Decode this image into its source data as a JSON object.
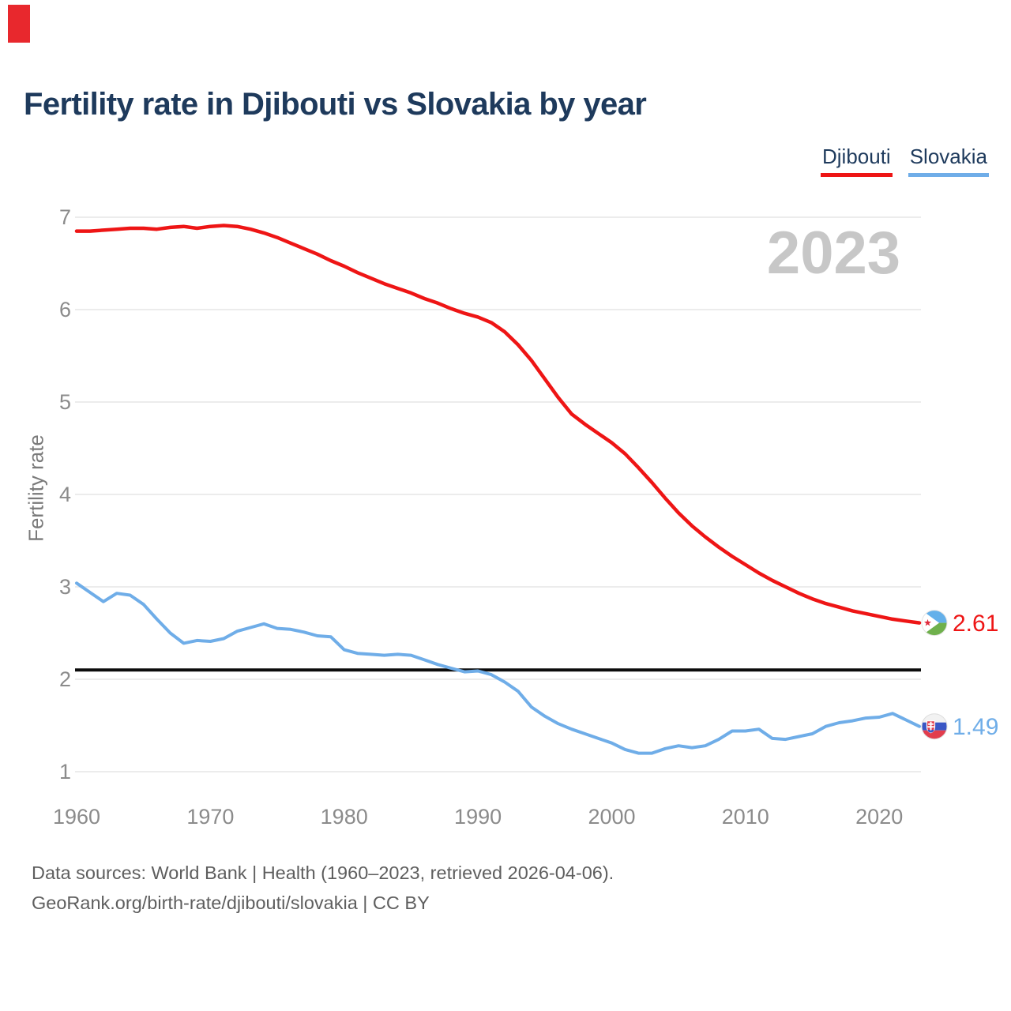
{
  "header": {
    "title": "Fertility rate in Djibouti vs Slovakia by year"
  },
  "watermark": "2023",
  "y_axis_title": "Fertility rate",
  "footer": {
    "line1": "Data sources: World Bank | Health (1960–2023, retrieved 2026-04-06).",
    "line2": "GeoRank.org/birth-rate/djibouti/slovakia | CC BY"
  },
  "colors": {
    "title": "#1e3a5c",
    "grid": "#ececec",
    "axis_text": "#8b8b8b",
    "watermark": "#c7c7c7",
    "footer_text": "#5e5e5e",
    "reference_line": "#0c0c0c",
    "background": "#ffffff",
    "marker_artifact": "#e8282d"
  },
  "chart_data": {
    "type": "line",
    "title": "Fertility rate in Djibouti vs Slovakia by year",
    "xlabel": "",
    "ylabel": "Fertility rate",
    "watermark": "2023",
    "xlim": [
      1960,
      2023
    ],
    "ylim": [
      1,
      7
    ],
    "x_ticks": [
      1960,
      1970,
      1980,
      1990,
      2000,
      2010,
      2020
    ],
    "y_ticks": [
      1,
      2,
      3,
      4,
      5,
      6,
      7
    ],
    "grid": "horizontal-only",
    "legend_position": "top-right",
    "reference_line": {
      "value": 2.1
    },
    "years": [
      1960,
      1961,
      1962,
      1963,
      1964,
      1965,
      1966,
      1967,
      1968,
      1969,
      1970,
      1971,
      1972,
      1973,
      1974,
      1975,
      1976,
      1977,
      1978,
      1979,
      1980,
      1981,
      1982,
      1983,
      1984,
      1985,
      1986,
      1987,
      1988,
      1989,
      1990,
      1991,
      1992,
      1993,
      1994,
      1995,
      1996,
      1997,
      1998,
      1999,
      2000,
      2001,
      2002,
      2003,
      2004,
      2005,
      2006,
      2007,
      2008,
      2009,
      2010,
      2011,
      2012,
      2013,
      2014,
      2015,
      2016,
      2017,
      2018,
      2019,
      2020,
      2021,
      2022,
      2023
    ],
    "series": [
      {
        "name": "Djibouti",
        "color": "#ee1515",
        "end_label": "2.61",
        "end_value": 2.61,
        "values": [
          6.85,
          6.85,
          6.86,
          6.87,
          6.88,
          6.88,
          6.87,
          6.89,
          6.9,
          6.88,
          6.9,
          6.91,
          6.9,
          6.87,
          6.83,
          6.78,
          6.72,
          6.66,
          6.6,
          6.53,
          6.47,
          6.4,
          6.34,
          6.28,
          6.23,
          6.18,
          6.12,
          6.07,
          6.01,
          5.96,
          5.92,
          5.86,
          5.76,
          5.62,
          5.45,
          5.25,
          5.05,
          4.87,
          4.76,
          4.66,
          4.56,
          4.44,
          4.29,
          4.13,
          3.96,
          3.8,
          3.66,
          3.54,
          3.43,
          3.33,
          3.24,
          3.15,
          3.07,
          3.0,
          2.93,
          2.87,
          2.82,
          2.78,
          2.74,
          2.71,
          2.68,
          2.65,
          2.63,
          2.61
        ]
      },
      {
        "name": "Slovakia",
        "color": "#6fade8",
        "end_label": "1.49",
        "end_value": 1.49,
        "values": [
          3.04,
          2.94,
          2.84,
          2.93,
          2.91,
          2.81,
          2.65,
          2.5,
          2.39,
          2.42,
          2.41,
          2.44,
          2.52,
          2.56,
          2.6,
          2.55,
          2.54,
          2.51,
          2.47,
          2.46,
          2.32,
          2.28,
          2.27,
          2.26,
          2.27,
          2.26,
          2.21,
          2.16,
          2.12,
          2.08,
          2.09,
          2.05,
          1.97,
          1.87,
          1.7,
          1.6,
          1.52,
          1.46,
          1.41,
          1.36,
          1.31,
          1.24,
          1.2,
          1.2,
          1.25,
          1.28,
          1.26,
          1.28,
          1.35,
          1.44,
          1.44,
          1.46,
          1.36,
          1.35,
          1.38,
          1.41,
          1.49,
          1.53,
          1.55,
          1.58,
          1.59,
          1.63,
          1.56,
          1.49
        ]
      }
    ]
  }
}
